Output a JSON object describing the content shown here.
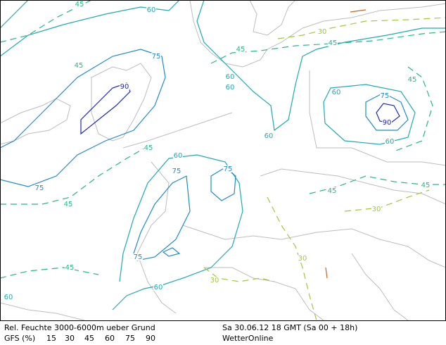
{
  "footer": {
    "title": "Rel. Feuchte 3000-6000m ueber Grund",
    "model": "GFS (%)",
    "date": "Sa 30.06.12 18 GMT (Sa 00 + 18h)",
    "source": "WetterOnline"
  },
  "legend": {
    "levels": [
      {
        "value": 15,
        "color": "#c86428"
      },
      {
        "value": 30,
        "color": "#a0c83c"
      },
      {
        "value": 45,
        "color": "#28b48c"
      },
      {
        "value": 60,
        "color": "#1eaab4"
      },
      {
        "value": 75,
        "color": "#1e8cc8"
      },
      {
        "value": 90,
        "color": "#1e28b4"
      }
    ]
  },
  "map": {
    "contour_labels": [
      45,
      60,
      30,
      45,
      45,
      75,
      45,
      60,
      60,
      90,
      45,
      60,
      75,
      90,
      60,
      60,
      45,
      60,
      75,
      75,
      75,
      45,
      45,
      45,
      30,
      75,
      30,
      45,
      30,
      60,
      60
    ]
  }
}
